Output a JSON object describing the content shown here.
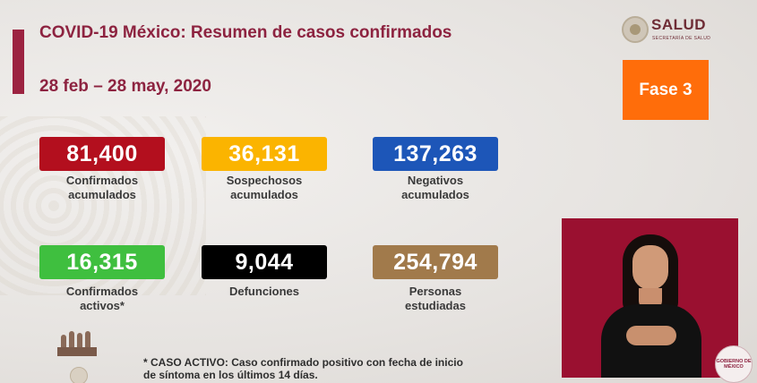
{
  "header": {
    "title": "COVID-19 México: Resumen de casos confirmados",
    "date_range": "28 feb – 28 may, 2020"
  },
  "logo": {
    "name": "SALUD",
    "subtitle": "SECRETARÍA DE SALUD"
  },
  "phase": {
    "label": "Fase 3",
    "color": "#ff6d0a"
  },
  "stats": [
    {
      "value": "81,400",
      "label_line1": "Confirmados",
      "label_line2": "acumulados",
      "color": "#b30f1e"
    },
    {
      "value": "36,131",
      "label_line1": "Sospechosos",
      "label_line2": "acumulados",
      "color": "#fbb400"
    },
    {
      "value": "137,263",
      "label_line1": "Negativos",
      "label_line2": "acumulados",
      "color": "#1d56b8"
    },
    {
      "value": "16,315",
      "label_line1": "Confirmados",
      "label_line2": "activos*",
      "color": "#3fbf3f"
    },
    {
      "value": "9,044",
      "label_line1": "Defunciones",
      "label_line2": "",
      "color": "#000000"
    },
    {
      "value": "254,794",
      "label_line1": "Personas",
      "label_line2": "estudiadas",
      "color": "#a17a4b"
    }
  ],
  "footnote": {
    "line1": "* CASO ACTIVO: Caso confirmado positivo con fecha de inicio",
    "line2": "de síntoma en los últimos 14 días."
  },
  "gob_logo": {
    "line1": "GOBIERNO DE",
    "line2": "MÉXICO"
  },
  "colors": {
    "accent": "#8d2340",
    "background": "#e9e7e4",
    "video_bg": "#9a1030"
  }
}
